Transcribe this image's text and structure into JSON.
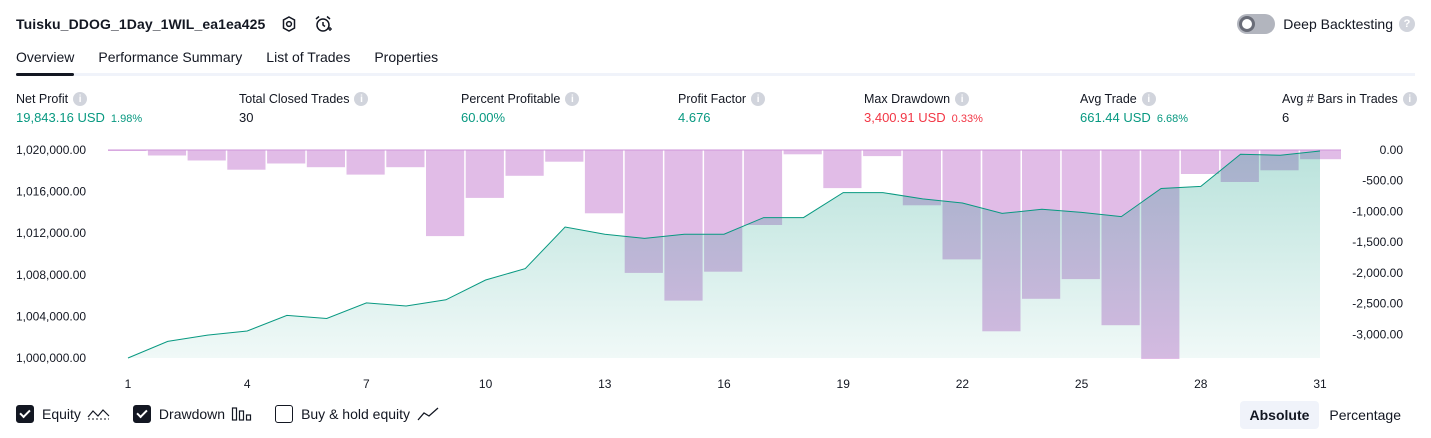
{
  "header": {
    "title": "Tuisku_DDOG_1Day_1WIL_ea1ea425",
    "icons": [
      "settings-icon",
      "alarm-icon"
    ]
  },
  "deep_backtesting": {
    "label": "Deep Backtesting",
    "enabled": false,
    "help": "?"
  },
  "tabs": [
    {
      "label": "Overview",
      "active": true
    },
    {
      "label": "Performance Summary",
      "active": false
    },
    {
      "label": "List of Trades",
      "active": false
    },
    {
      "label": "Properties",
      "active": false
    }
  ],
  "metrics": [
    {
      "label": "Net Profit",
      "value": "19,843.16 USD",
      "pct": "1.98%",
      "color": "green"
    },
    {
      "label": "Total Closed Trades",
      "value": "30",
      "pct": "",
      "color": "dark"
    },
    {
      "label": "Percent Profitable",
      "value": "60.00%",
      "pct": "",
      "color": "green"
    },
    {
      "label": "Profit Factor",
      "value": "4.676",
      "pct": "",
      "color": "green"
    },
    {
      "label": "Max Drawdown",
      "value": "3,400.91 USD",
      "pct": "0.33%",
      "color": "red"
    },
    {
      "label": "Avg Trade",
      "value": "661.44 USD",
      "pct": "6.68%",
      "color": "green"
    },
    {
      "label": "Avg # Bars in Trades",
      "value": "6",
      "pct": "",
      "color": "dark"
    }
  ],
  "chart_data": {
    "type": "area",
    "x_ticks": [
      "1",
      "4",
      "7",
      "10",
      "13",
      "16",
      "19",
      "22",
      "25",
      "28",
      "31"
    ],
    "left_axis": {
      "ticks": [
        "1,020,000.00",
        "1,016,000.00",
        "1,012,000.00",
        "1,008,000.00",
        "1,004,000.00",
        "1,000,000.00"
      ],
      "ylim": [
        1000000,
        1020000
      ]
    },
    "right_axis": {
      "ticks": [
        "0.00",
        "-500.00",
        "-1,000.00",
        "-1,500.00",
        "-2,000.00",
        "-2,500.00",
        "-3,000.00"
      ],
      "ylim": [
        -3400,
        0
      ]
    },
    "series": [
      {
        "name": "Equity",
        "color": "#089981",
        "x": [
          1,
          2,
          3,
          4,
          5,
          6,
          7,
          8,
          9,
          10,
          11,
          12,
          13,
          14,
          15,
          16,
          17,
          18,
          19,
          20,
          21,
          22,
          23,
          24,
          25,
          26,
          27,
          28,
          29,
          30,
          31
        ],
        "values": [
          1000000,
          1001600,
          1002200,
          1002600,
          1004100,
          1003800,
          1005300,
          1005000,
          1005600,
          1007500,
          1008600,
          1012600,
          1011900,
          1011500,
          1011900,
          1011900,
          1013500,
          1013500,
          1015900,
          1015900,
          1015300,
          1014900,
          1013900,
          1014300,
          1014000,
          1013600,
          1016300,
          1016500,
          1019600,
          1019500,
          1019900
        ]
      },
      {
        "name": "Drawdown",
        "color": "#ce93d8",
        "x": [
          1,
          2,
          3,
          4,
          5,
          6,
          7,
          8,
          9,
          10,
          11,
          12,
          13,
          14,
          15,
          16,
          17,
          18,
          19,
          20,
          21,
          22,
          23,
          24,
          25,
          26,
          27,
          28,
          29,
          30,
          31
        ],
        "values": [
          -10,
          -90,
          -170,
          -320,
          -220,
          -280,
          -400,
          -280,
          -1400,
          -780,
          -420,
          -190,
          -1030,
          -2000,
          -2450,
          -1980,
          -1220,
          -70,
          -620,
          -100,
          -900,
          -1780,
          -2950,
          -2420,
          -2100,
          -2850,
          -3400,
          -390,
          -520,
          -330,
          -150
        ]
      }
    ],
    "legend": [
      {
        "label": "Equity",
        "checked": true,
        "icon": "equity-wave-icon"
      },
      {
        "label": "Drawdown",
        "checked": true,
        "icon": "drawdown-bars-icon"
      },
      {
        "label": "Buy & hold equity",
        "checked": false,
        "icon": "buy-hold-line-icon"
      }
    ]
  },
  "modes": [
    {
      "label": "Absolute",
      "active": true
    },
    {
      "label": "Percentage",
      "active": false
    }
  ]
}
